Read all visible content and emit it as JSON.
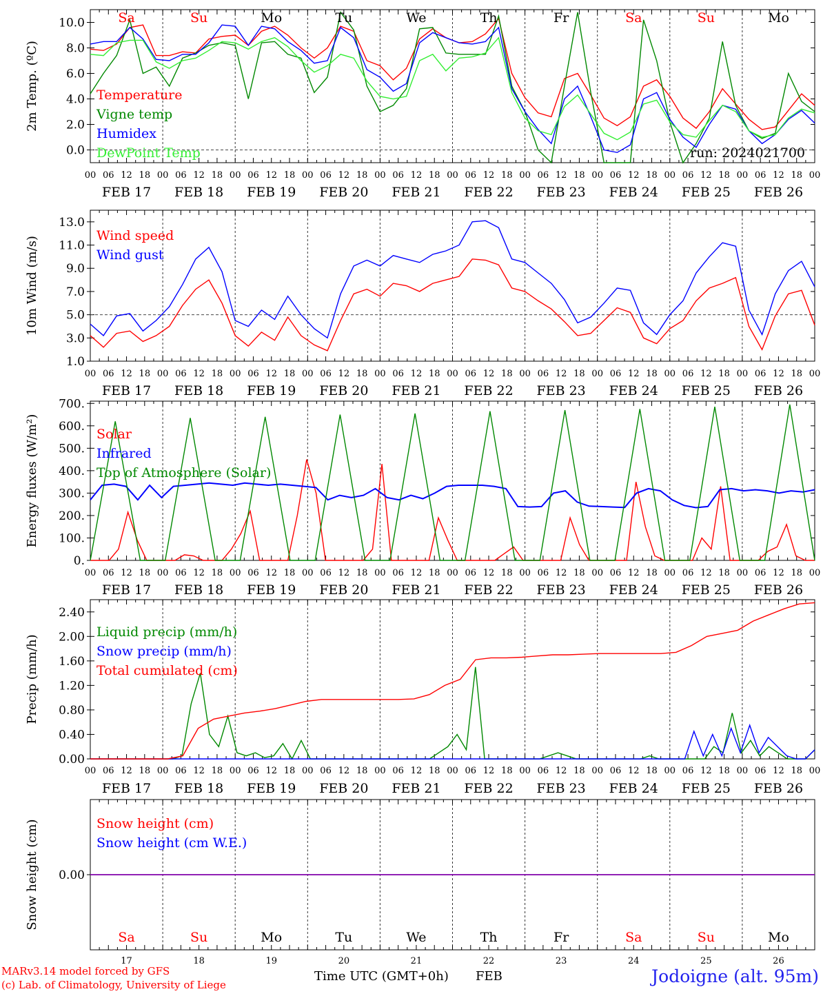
{
  "colors": {
    "red": "#ff0000",
    "green": "#008800",
    "blue": "#0000ff",
    "lightgreen": "#33ee33",
    "purple": "#8000aa",
    "axis": "#000000",
    "weekend": "#ff0000",
    "weekday": "#000000"
  },
  "days": [
    {
      "abbr": "Sa",
      "date": "FEB 17",
      "num": "17",
      "weekend": true
    },
    {
      "abbr": "Su",
      "date": "FEB 18",
      "num": "18",
      "weekend": true
    },
    {
      "abbr": "Mo",
      "date": "FEB 19",
      "num": "19",
      "weekend": false
    },
    {
      "abbr": "Tu",
      "date": "FEB 20",
      "num": "20",
      "weekend": false
    },
    {
      "abbr": "We",
      "date": "FEB 21",
      "num": "21",
      "weekend": false
    },
    {
      "abbr": "Th",
      "date": "FEB 22",
      "num": "22",
      "weekend": false
    },
    {
      "abbr": "Fr",
      "date": "FEB 23",
      "num": "23",
      "weekend": false
    },
    {
      "abbr": "Sa",
      "date": "FEB 24",
      "num": "24",
      "weekend": true
    },
    {
      "abbr": "Su",
      "date": "FEB 25",
      "num": "25",
      "weekend": true
    },
    {
      "abbr": "Mo",
      "date": "FEB 26",
      "num": "26",
      "weekend": false
    }
  ],
  "hour_labels": [
    "00",
    "06",
    "12",
    "18"
  ],
  "end_hour_label": "00",
  "run_label": "run: 2024021700",
  "chart_data": [
    {
      "type": "line",
      "ylabel": "2m Temp. (ºC)",
      "ylim": [
        -1.0,
        11.0
      ],
      "yticks": [
        "10.0",
        "8.0",
        "6.0",
        "4.0",
        "2.0",
        "0.0"
      ],
      "ytick_values": [
        10,
        8,
        6,
        4,
        2,
        0
      ],
      "ref_line": 0,
      "series": [
        {
          "name": "Temperature",
          "color": "red",
          "values": [
            7.9,
            7.8,
            8.3,
            9.6,
            9.8,
            7.4,
            7.4,
            7.7,
            7.6,
            8.7,
            8.9,
            9.0,
            8.2,
            9.3,
            9.7,
            9.0,
            8.0,
            7.2,
            8.0,
            9.7,
            9.3,
            7.0,
            6.6,
            5.5,
            6.4,
            8.7,
            9.5,
            8.8,
            8.4,
            8.5,
            9.1,
            10.3,
            6.0,
            4.1,
            2.9,
            2.6,
            5.6,
            6.0,
            4.3,
            2.5,
            1.9,
            2.6,
            5.0,
            5.5,
            4.2,
            2.5,
            1.7,
            3.0,
            4.8,
            3.6,
            2.4,
            1.6,
            1.8,
            3.1,
            4.4,
            3.5
          ]
        },
        {
          "name": "Vigne temp",
          "color": "green",
          "values": [
            4.4,
            6.0,
            7.4,
            10.2,
            6.0,
            6.5,
            5.0,
            7.2,
            7.6,
            8.2,
            8.4,
            8.2,
            4.0,
            8.4,
            8.5,
            7.5,
            7.2,
            4.5,
            5.7,
            10.8,
            9.4,
            5.0,
            3.0,
            3.5,
            4.8,
            9.5,
            9.6,
            7.6,
            7.5,
            7.5,
            7.5,
            10.5,
            5.0,
            3.0,
            0.0,
            -1.5,
            5.0,
            10.8,
            4.5,
            -1.2,
            -1.2,
            -1.5,
            10.2,
            7.0,
            2.2,
            -1.5,
            0.5,
            2.5,
            8.5,
            3.5,
            1.5,
            0.9,
            1.3,
            6.0,
            3.8,
            3.0
          ]
        },
        {
          "name": "Humidex",
          "color": "blue",
          "values": [
            8.3,
            8.5,
            8.5,
            9.6,
            8.7,
            7.1,
            7.0,
            7.5,
            7.5,
            8.4,
            9.8,
            9.7,
            8.2,
            9.7,
            9.5,
            8.5,
            7.8,
            6.8,
            7.0,
            9.6,
            8.8,
            6.3,
            5.7,
            4.6,
            5.2,
            8.4,
            9.2,
            8.8,
            8.4,
            8.3,
            8.5,
            9.6,
            4.8,
            3.0,
            1.6,
            0.5,
            4.0,
            5.0,
            2.6,
            0.0,
            -0.2,
            0.4,
            4.0,
            4.5,
            2.4,
            1.0,
            0.2,
            2.0,
            3.5,
            3.2,
            1.5,
            0.5,
            1.2,
            2.4,
            3.1,
            2.1
          ]
        },
        {
          "name": "DewPoint Temp",
          "color": "lightgreen",
          "values": [
            7.5,
            7.4,
            8.4,
            8.6,
            8.6,
            6.9,
            6.4,
            7.0,
            7.2,
            7.8,
            8.5,
            8.4,
            7.9,
            8.5,
            8.8,
            8.1,
            7.0,
            6.1,
            6.6,
            7.5,
            7.2,
            5.4,
            4.2,
            4.0,
            4.2,
            7.0,
            7.5,
            6.2,
            7.2,
            7.3,
            7.6,
            8.8,
            4.5,
            2.5,
            1.5,
            1.2,
            3.4,
            4.3,
            2.8,
            1.3,
            0.8,
            1.4,
            3.6,
            3.9,
            2.2,
            1.2,
            1.0,
            2.3,
            3.5,
            3.0,
            1.5,
            1.0,
            1.2,
            2.5,
            3.2,
            2.9
          ]
        }
      ]
    },
    {
      "type": "line",
      "ylabel": "10m Wind (m/s)",
      "ylim": [
        1.0,
        14.0
      ],
      "yticks": [
        "13.0",
        "11.0",
        "9.0",
        "7.0",
        "5.0",
        "3.0",
        "1.0"
      ],
      "ytick_values": [
        13,
        11,
        9,
        7,
        5,
        3,
        1
      ],
      "ref_line": 5,
      "series": [
        {
          "name": "Wind speed",
          "color": "red",
          "values": [
            3.2,
            2.2,
            3.4,
            3.6,
            2.7,
            3.2,
            4.0,
            5.8,
            7.2,
            8.0,
            6.0,
            3.2,
            2.3,
            3.5,
            2.8,
            4.8,
            3.2,
            2.4,
            1.9,
            4.5,
            6.8,
            7.2,
            6.6,
            7.7,
            7.5,
            7.0,
            7.7,
            8.0,
            8.3,
            9.8,
            9.7,
            9.3,
            7.3,
            7.0,
            6.2,
            5.5,
            4.4,
            3.2,
            3.4,
            4.5,
            5.6,
            5.2,
            3.0,
            2.5,
            3.8,
            4.5,
            6.2,
            7.3,
            7.7,
            8.2,
            4.0,
            2.0,
            4.9,
            6.8,
            7.1,
            4.1
          ]
        },
        {
          "name": "Wind gust",
          "color": "blue",
          "values": [
            4.2,
            3.2,
            4.9,
            5.1,
            3.6,
            4.5,
            5.7,
            7.6,
            9.8,
            10.8,
            8.7,
            4.5,
            4.0,
            5.4,
            4.6,
            6.6,
            5.0,
            3.8,
            3.0,
            6.8,
            9.2,
            9.7,
            9.2,
            10.1,
            9.8,
            9.5,
            10.2,
            10.5,
            11.0,
            13.0,
            13.1,
            12.5,
            9.8,
            9.5,
            8.6,
            7.7,
            6.3,
            4.3,
            4.8,
            6.0,
            7.3,
            7.1,
            4.3,
            3.3,
            5.0,
            6.2,
            8.6,
            10.0,
            11.2,
            10.9,
            5.4,
            3.3,
            6.8,
            8.8,
            9.6,
            7.4
          ]
        }
      ]
    },
    {
      "type": "line",
      "ylabel": "Energy fluxes (W/m²)",
      "ylim": [
        0,
        710
      ],
      "yticks": [
        "700.",
        "600.",
        "500.",
        "400.",
        "300.",
        "200.",
        "100.",
        "0."
      ],
      "ytick_values": [
        700,
        600,
        500,
        400,
        300,
        200,
        100,
        0
      ],
      "ref_line": null,
      "series": [
        {
          "name": "Solar",
          "color": "red",
          "values": [
            0,
            0,
            0,
            50,
            215,
            90,
            0,
            0,
            0,
            0,
            25,
            20,
            0,
            0,
            0,
            50,
            120,
            220,
            0,
            0,
            0,
            0,
            200,
            450,
            300,
            0,
            0,
            0,
            0,
            0,
            50,
            430,
            0,
            0,
            0,
            0,
            0,
            190,
            90,
            0,
            0,
            0,
            0,
            0,
            30,
            60,
            0,
            0,
            0,
            0,
            0,
            190,
            70,
            0,
            0,
            0,
            0,
            0,
            350,
            150,
            20,
            0,
            0,
            0,
            0,
            100,
            50,
            330,
            0,
            0,
            0,
            0,
            40,
            60,
            160,
            20,
            0,
            0
          ]
        },
        {
          "name": "Infrared",
          "color": "blue",
          "values": [
            270,
            335,
            340,
            330,
            270,
            335,
            280,
            330,
            335,
            340,
            345,
            340,
            335,
            345,
            340,
            335,
            340,
            335,
            330,
            325,
            270,
            290,
            280,
            290,
            320,
            280,
            270,
            290,
            275,
            300,
            330,
            335,
            335,
            335,
            330,
            320,
            240,
            238,
            240,
            300,
            310,
            260,
            242,
            240,
            238,
            236,
            300,
            320,
            310,
            270,
            245,
            235,
            240,
            315,
            320,
            310,
            315,
            310,
            300,
            310,
            305,
            315
          ]
        },
        {
          "name": "Top of Atmosphere (Solar)",
          "color": "green",
          "values": [
            0,
            620,
            0,
            0,
            635,
            0,
            0,
            640,
            0,
            0,
            650,
            0,
            0,
            655,
            0,
            0,
            665,
            0,
            0,
            670,
            0,
            0,
            675,
            0,
            0,
            685,
            0,
            0,
            695,
            0
          ]
        }
      ]
    },
    {
      "type": "line",
      "ylabel": "Precip (mm/h)",
      "ylim": [
        0.0,
        2.6
      ],
      "yticks": [
        "2.40",
        "2.00",
        "1.60",
        "1.20",
        "0.80",
        "0.40",
        "0.00"
      ],
      "ytick_values": [
        2.4,
        2.0,
        1.6,
        1.2,
        0.8,
        0.4,
        0.0
      ],
      "ref_line": null,
      "series": [
        {
          "name": "Liquid precip (mm/h)",
          "color": "green",
          "values": [
            0,
            0,
            0,
            0,
            0,
            0,
            0,
            0,
            0,
            0,
            0.05,
            0.9,
            1.4,
            0.4,
            0.2,
            0.7,
            0.1,
            0.05,
            0.1,
            0.02,
            0.05,
            0.25,
            0.0,
            0.3,
            0,
            0,
            0,
            0,
            0,
            0,
            0,
            0,
            0,
            0,
            0,
            0,
            0,
            0,
            0.1,
            0.2,
            0.4,
            0.15,
            1.5,
            0,
            0,
            0,
            0,
            0,
            0,
            0,
            0.05,
            0.1,
            0.05,
            0,
            0,
            0,
            0,
            0,
            0,
            0,
            0,
            0.05,
            0,
            0,
            0,
            0,
            0,
            0,
            0.2,
            0.1,
            0.75,
            0.1,
            0.3,
            0.05,
            0.2,
            0.1,
            0,
            0,
            0,
            0.15
          ]
        },
        {
          "name": "Snow precip (mm/h)",
          "color": "blue",
          "values": [
            0,
            0,
            0,
            0,
            0,
            0,
            0,
            0,
            0,
            0,
            0,
            0,
            0,
            0,
            0,
            0,
            0,
            0,
            0,
            0,
            0,
            0,
            0,
            0,
            0,
            0,
            0,
            0,
            0,
            0,
            0,
            0,
            0,
            0,
            0,
            0,
            0,
            0,
            0,
            0,
            0,
            0,
            0,
            0,
            0,
            0,
            0,
            0,
            0,
            0,
            0,
            0,
            0,
            0,
            0,
            0,
            0,
            0,
            0,
            0,
            0,
            0,
            0,
            0,
            0,
            0.45,
            0.05,
            0.4,
            0.05,
            0.5,
            0.1,
            0.55,
            0.1,
            0.35,
            0.2,
            0.05,
            0,
            0,
            0.15
          ]
        },
        {
          "name": "Total cumulated (cm)",
          "color": "red",
          "values": [
            0,
            0,
            0,
            0,
            0,
            0,
            0.05,
            0.5,
            0.65,
            0.7,
            0.75,
            0.78,
            0.82,
            0.88,
            0.94,
            0.97,
            0.97,
            0.97,
            0.97,
            0.97,
            0.97,
            0.98,
            1.05,
            1.2,
            1.3,
            1.62,
            1.65,
            1.65,
            1.66,
            1.68,
            1.7,
            1.7,
            1.71,
            1.72,
            1.72,
            1.72,
            1.72,
            1.72,
            1.74,
            1.85,
            2.0,
            2.05,
            2.1,
            2.25,
            2.35,
            2.45,
            2.53,
            2.55
          ]
        }
      ]
    },
    {
      "type": "line",
      "ylabel": "Snow height (cm)",
      "ylim": [
        -1,
        1
      ],
      "yticks": [
        "0.00"
      ],
      "ytick_values": [
        0
      ],
      "ref_line": null,
      "series": [
        {
          "name": "Snow height (cm)",
          "color": "red",
          "values": [
            0,
            0
          ]
        },
        {
          "name": "Snow height (cm W.E.)",
          "color": "blue",
          "values": [
            0,
            0
          ]
        }
      ]
    }
  ],
  "footer": {
    "model_line": "MARv3.14 model forced by GFS",
    "credit_line": "(c) Lab. of Climatology, University of Liege",
    "xlabel": "Time UTC (GMT+0h)",
    "month": "FEB",
    "station": "Jodoigne (alt. 95m)"
  }
}
